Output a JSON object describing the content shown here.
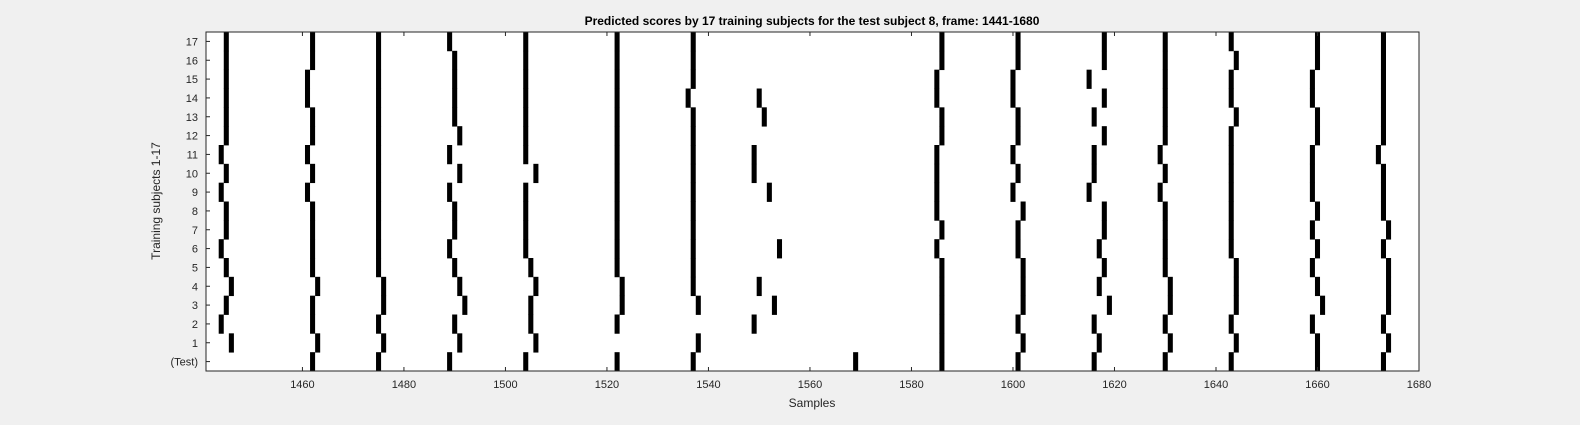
{
  "chart_data": {
    "type": "raster",
    "title": "Predicted scores by 17 training subjects for the test subject 8, frame: 1441-1680",
    "xlabel": "Samples",
    "ylabel": "Training subjects 1-17",
    "xlim": [
      1441,
      1680
    ],
    "xticks": [
      1460,
      1480,
      1500,
      1520,
      1540,
      1560,
      1580,
      1600,
      1620,
      1640,
      1660,
      1680
    ],
    "row_labels": [
      "(Test)",
      "1",
      "2",
      "3",
      "4",
      "5",
      "6",
      "7",
      "8",
      "9",
      "10",
      "11",
      "12",
      "13",
      "14",
      "15",
      "16",
      "17"
    ],
    "grid": false,
    "colors": {
      "background": "#ffffff",
      "mark": "#000000",
      "figure": "#f0f0f0"
    },
    "rows": [
      {
        "label": "(Test)",
        "samples": [
          1462,
          1475,
          1489,
          1504,
          1522,
          1537,
          1569,
          1586,
          1601,
          1616,
          1630,
          1643,
          1660,
          1673
        ]
      },
      {
        "label": "1",
        "samples": [
          1446,
          1463,
          1476,
          1491,
          1506,
          1538,
          1586,
          1602,
          1617,
          1631,
          1644,
          1660,
          1674
        ]
      },
      {
        "label": "2",
        "samples": [
          1444,
          1462,
          1475,
          1490,
          1505,
          1522,
          1549,
          1586,
          1601,
          1616,
          1630,
          1643,
          1659,
          1673
        ]
      },
      {
        "label": "3",
        "samples": [
          1445,
          1462,
          1476,
          1492,
          1505,
          1523,
          1538,
          1553,
          1586,
          1602,
          1619,
          1631,
          1644,
          1661,
          1674
        ]
      },
      {
        "label": "4",
        "samples": [
          1446,
          1463,
          1476,
          1491,
          1506,
          1523,
          1537,
          1550,
          1586,
          1602,
          1617,
          1631,
          1644,
          1660,
          1674
        ]
      },
      {
        "label": "5",
        "samples": [
          1445,
          1462,
          1475,
          1490,
          1505,
          1522,
          1537,
          1586,
          1602,
          1618,
          1630,
          1644,
          1659,
          1674
        ]
      },
      {
        "label": "6",
        "samples": [
          1444,
          1462,
          1475,
          1489,
          1504,
          1522,
          1537,
          1554,
          1585,
          1601,
          1617,
          1630,
          1643,
          1660,
          1673
        ]
      },
      {
        "label": "7",
        "samples": [
          1445,
          1462,
          1475,
          1490,
          1504,
          1522,
          1537,
          1586,
          1601,
          1618,
          1630,
          1643,
          1659,
          1674
        ]
      },
      {
        "label": "8",
        "samples": [
          1445,
          1462,
          1475,
          1490,
          1504,
          1522,
          1537,
          1585,
          1602,
          1618,
          1630,
          1643,
          1660,
          1673
        ]
      },
      {
        "label": "9",
        "samples": [
          1444,
          1461,
          1475,
          1489,
          1504,
          1522,
          1537,
          1552,
          1585,
          1600,
          1615,
          1629,
          1643,
          1659,
          1673
        ]
      },
      {
        "label": "10",
        "samples": [
          1445,
          1462,
          1475,
          1491,
          1506,
          1522,
          1537,
          1549,
          1585,
          1601,
          1616,
          1630,
          1643,
          1659,
          1673
        ]
      },
      {
        "label": "11",
        "samples": [
          1444,
          1461,
          1475,
          1489,
          1504,
          1522,
          1537,
          1549,
          1585,
          1600,
          1616,
          1629,
          1643,
          1659,
          1672
        ]
      },
      {
        "label": "12",
        "samples": [
          1445,
          1462,
          1475,
          1491,
          1504,
          1522,
          1537,
          1586,
          1601,
          1618,
          1630,
          1643,
          1660,
          1673
        ]
      },
      {
        "label": "13",
        "samples": [
          1445,
          1462,
          1475,
          1490,
          1504,
          1522,
          1537,
          1551,
          1586,
          1601,
          1616,
          1630,
          1644,
          1660,
          1673
        ]
      },
      {
        "label": "14",
        "samples": [
          1445,
          1461,
          1475,
          1490,
          1504,
          1522,
          1536,
          1550,
          1585,
          1600,
          1618,
          1630,
          1643,
          1659,
          1673
        ]
      },
      {
        "label": "15",
        "samples": [
          1445,
          1461,
          1475,
          1490,
          1504,
          1522,
          1537,
          1585,
          1600,
          1615,
          1630,
          1643,
          1659,
          1673
        ]
      },
      {
        "label": "16",
        "samples": [
          1445,
          1462,
          1475,
          1490,
          1504,
          1522,
          1537,
          1586,
          1601,
          1618,
          1630,
          1644,
          1660,
          1673
        ]
      },
      {
        "label": "17",
        "samples": [
          1445,
          1462,
          1475,
          1489,
          1504,
          1522,
          1537,
          1586,
          1601,
          1618,
          1630,
          1643,
          1660,
          1673
        ]
      }
    ]
  }
}
